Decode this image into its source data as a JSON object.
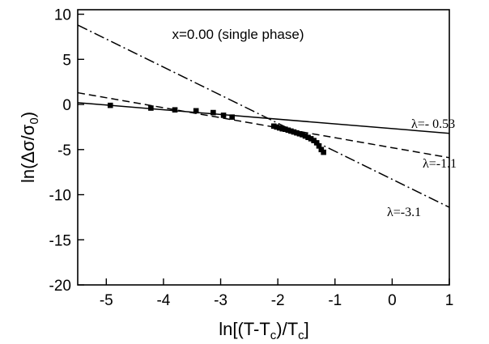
{
  "chart_data": {
    "type": "scatter",
    "title": "",
    "annotation": "x=0.00 (single phase)",
    "xlabel": "ln[(T-T_c)/T_c]",
    "ylabel": "ln(Δσ/σ_0)",
    "xlim": [
      -5.5,
      1
    ],
    "ylim": [
      -20,
      10.5
    ],
    "xticks": [
      -5,
      -4,
      -3,
      -2,
      -1,
      0,
      1
    ],
    "yticks": [
      10,
      5,
      0,
      -5,
      -10,
      -15,
      -20
    ],
    "grid": false,
    "legend": "none",
    "series": [
      {
        "kind": "points",
        "marker": "square",
        "x": [
          -4.93,
          -4.22,
          -3.8,
          -3.43,
          -3.13,
          -2.95,
          -2.8,
          -2.07,
          -2.02,
          -1.97,
          -1.92,
          -1.87,
          -1.82,
          -1.77,
          -1.72,
          -1.67,
          -1.62,
          -1.57,
          -1.52,
          -1.47,
          -1.42,
          -1.37,
          -1.32,
          -1.28,
          -1.24,
          -1.2
        ],
        "y": [
          -0.1,
          -0.4,
          -0.6,
          -0.7,
          -0.9,
          -1.2,
          -1.4,
          -2.4,
          -2.5,
          -2.6,
          -2.7,
          -2.75,
          -2.85,
          -2.95,
          -3.05,
          -3.15,
          -3.25,
          -3.35,
          -3.5,
          -3.65,
          -3.8,
          -4.0,
          -4.25,
          -4.6,
          -5.0,
          -5.3
        ]
      },
      {
        "kind": "line",
        "dash": "solid",
        "lambda_label": "λ=- 0.53",
        "x": [
          -5.5,
          1
        ],
        "y": [
          0.2,
          -3.2
        ]
      },
      {
        "kind": "line",
        "dash": "dashed",
        "lambda_label": "λ=-1.1",
        "x": [
          -5.5,
          1
        ],
        "y": [
          1.3,
          -5.9
        ]
      },
      {
        "kind": "line",
        "dash": "dashdot",
        "lambda_label": "λ=-3.1",
        "x": [
          -5.5,
          1
        ],
        "y": [
          8.8,
          -11.4
        ]
      }
    ]
  }
}
